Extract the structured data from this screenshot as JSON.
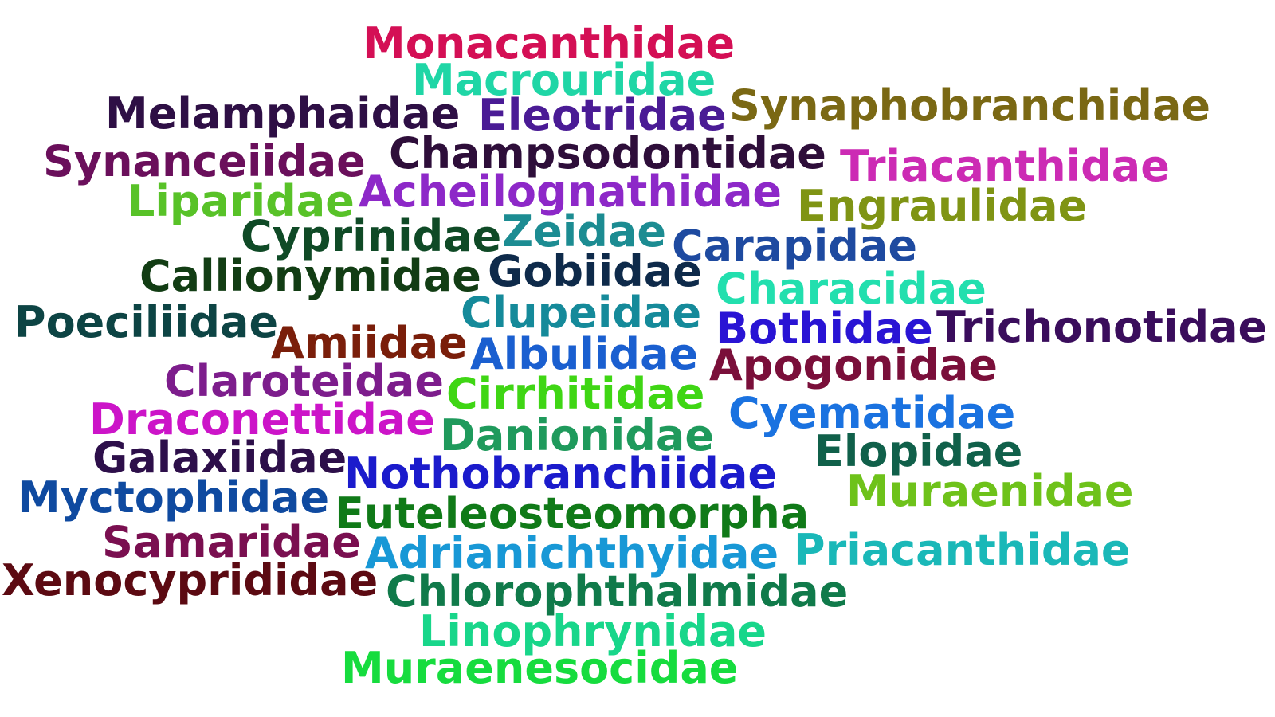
{
  "words": [
    {
      "text": "Monacanthidae"
    },
    {
      "text": "Macrouridae"
    },
    {
      "text": "Melamphaidae"
    },
    {
      "text": "Eleotridae"
    },
    {
      "text": "Synaphobranchidae"
    },
    {
      "text": "Synanceiidae"
    },
    {
      "text": "Champsodontidae"
    },
    {
      "text": "Triacanthidae"
    },
    {
      "text": "Liparidae"
    },
    {
      "text": "Acheilognathidae"
    },
    {
      "text": "Engraulidae"
    },
    {
      "text": "Cyprinidae"
    },
    {
      "text": "Zeidae"
    },
    {
      "text": "Carapidae"
    },
    {
      "text": "Callionymidae"
    },
    {
      "text": "Gobiidae"
    },
    {
      "text": "Characidae"
    },
    {
      "text": "Poeciliidae"
    },
    {
      "text": "Clupeidae"
    },
    {
      "text": "Bothidae"
    },
    {
      "text": "Trichonotidae"
    },
    {
      "text": "Amiidae"
    },
    {
      "text": "Albulidae"
    },
    {
      "text": "Apogonidae"
    },
    {
      "text": "Claroteidae"
    },
    {
      "text": "Cirrhitidae"
    },
    {
      "text": "Draconettidae"
    },
    {
      "text": "Cyematidae"
    },
    {
      "text": "Danionidae"
    },
    {
      "text": "Elopidae"
    },
    {
      "text": "Galaxiidae"
    },
    {
      "text": "Nothobranchiidae"
    },
    {
      "text": "Muraenidae"
    },
    {
      "text": "Myctophidae"
    },
    {
      "text": "Euteleosteomorpha"
    },
    {
      "text": "Samaridae"
    },
    {
      "text": "Adrianichthyidae"
    },
    {
      "text": "Priacanthidae"
    },
    {
      "text": "Xenocyprididae"
    },
    {
      "text": "Chlorophthalmidae"
    },
    {
      "text": "Linophrynidae"
    },
    {
      "text": "Muraenesocidae"
    }
  ]
}
